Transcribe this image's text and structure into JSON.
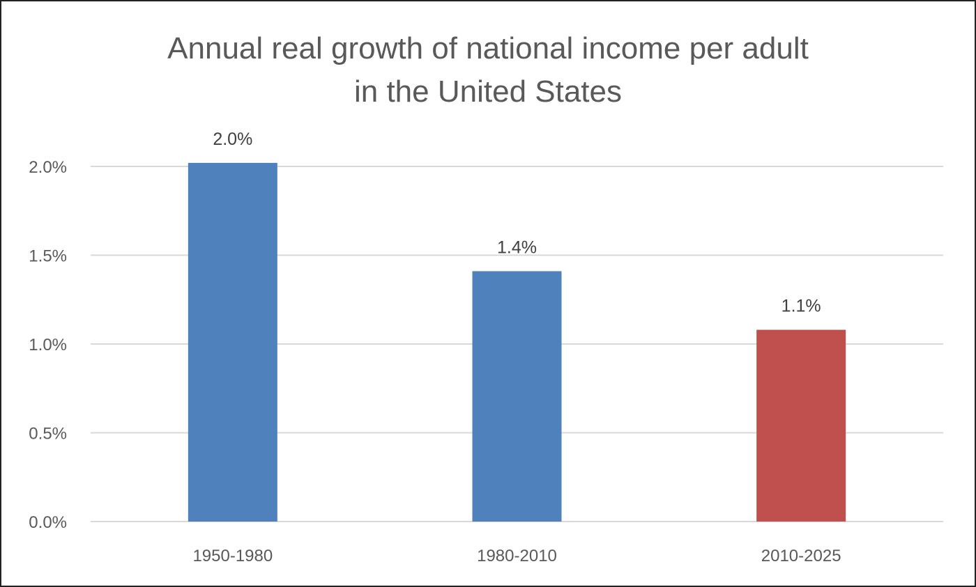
{
  "chart_data": {
    "type": "bar",
    "title": [
      "Annual real growth of national income per adult",
      "in the United States"
    ],
    "categories": [
      "1950-1980",
      "1980-2010",
      "2010-2025"
    ],
    "values": [
      2.02,
      1.41,
      1.08
    ],
    "data_labels": [
      "2.0%",
      "1.4%",
      "1.1%"
    ],
    "bar_colors": [
      "#4F81BD",
      "#4F81BD",
      "#C0504D"
    ],
    "ylim": [
      0,
      2.0
    ],
    "yticks": [
      0,
      0.5,
      1.0,
      1.5,
      2.0
    ],
    "ytick_labels": [
      "0.0%",
      "0.5%",
      "1.0%",
      "1.5%",
      "2.0%"
    ],
    "xlabel": "",
    "ylabel": "",
    "grid": "horizontal",
    "legend": "none",
    "gridline_color": "#D9D9D9"
  }
}
